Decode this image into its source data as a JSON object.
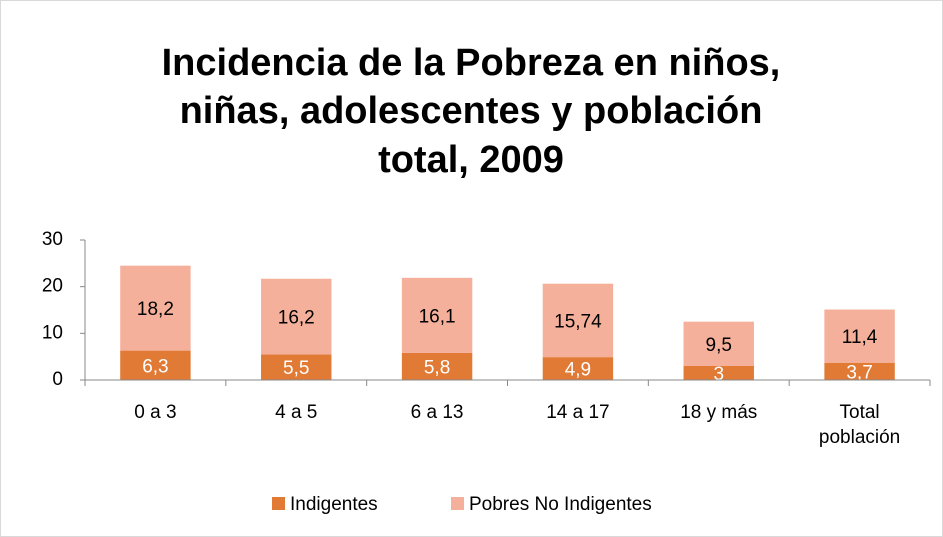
{
  "chart_data": {
    "type": "stacked_bar",
    "title": [
      "Incidencia de la Pobreza en niños,",
      "niñas, adolescentes y población",
      "total, 2009"
    ],
    "categories": [
      "0 a 3",
      "4 a 5",
      "6 a 13",
      "14 a 17",
      "18 y más",
      "Total población"
    ],
    "series": [
      {
        "name": "Indigentes",
        "color": "#e07a35",
        "values": [
          6.3,
          5.5,
          5.8,
          4.9,
          3,
          3.7
        ],
        "value_labels": [
          "6,3",
          "5,5",
          "5,8",
          "4,9",
          "3",
          "3,7"
        ]
      },
      {
        "name": "Pobres No Indigentes",
        "color": "#f5b09b",
        "values": [
          18.2,
          16.2,
          16.1,
          15.74,
          9.5,
          11.4
        ],
        "value_labels": [
          "18,2",
          "16,2",
          "16,1",
          "15,74",
          "9,5",
          "11,4"
        ]
      }
    ],
    "ylim": [
      0,
      30
    ],
    "yticks": [
      0,
      10,
      20,
      30
    ],
    "grid": false,
    "legend": "bottom"
  }
}
